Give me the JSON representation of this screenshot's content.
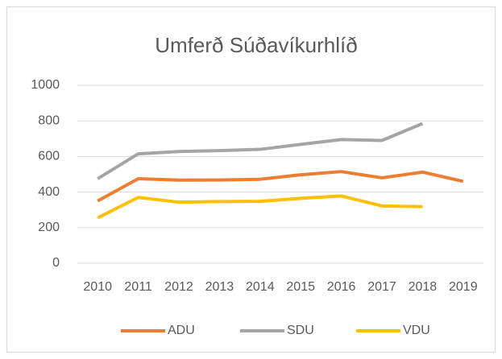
{
  "chart_data": {
    "type": "line",
    "title": "Umferð Súðavíkurhlíð",
    "categories": [
      "2010",
      "2011",
      "2012",
      "2013",
      "2014",
      "2015",
      "2016",
      "2017",
      "2018",
      "2019"
    ],
    "series": [
      {
        "name": "ADU",
        "color": "#ed7d31",
        "values": [
          350,
          475,
          467,
          468,
          472,
          497,
          515,
          480,
          512,
          460
        ]
      },
      {
        "name": "SDU",
        "color": "#a5a5a5",
        "values": [
          475,
          615,
          628,
          633,
          640,
          668,
          695,
          690,
          785,
          null
        ]
      },
      {
        "name": "VDU",
        "color": "#ffc000",
        "values": [
          255,
          370,
          343,
          347,
          348,
          365,
          378,
          322,
          318,
          null
        ]
      }
    ],
    "ylim": [
      0,
      1000
    ],
    "yticks": [
      0,
      200,
      400,
      600,
      800,
      1000
    ],
    "grid": true,
    "legend": "bottom"
  }
}
